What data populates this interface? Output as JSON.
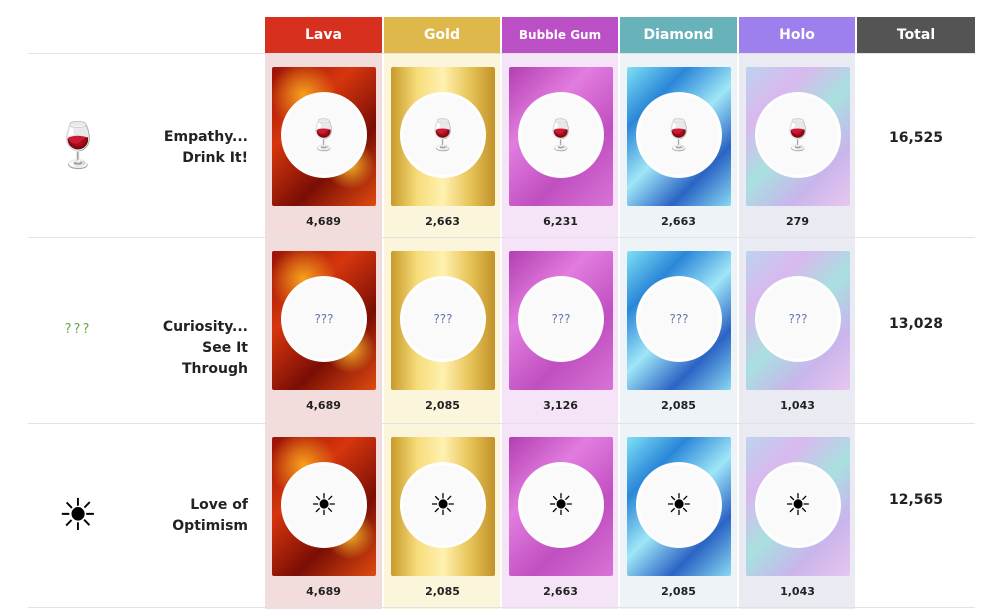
{
  "columns": [
    {
      "label": "Lava",
      "color": "#d7301f",
      "bg": "#f3dcdc",
      "style": "lava"
    },
    {
      "label": "Gold",
      "color": "#dfb84c",
      "bg": "#fbf5dc",
      "style": "gold"
    },
    {
      "label": "Bubble Gum",
      "color": "#bb4fc6",
      "bg": "#f5e4f7",
      "style": "bubble"
    },
    {
      "label": "Diamond",
      "color": "#68b3b9",
      "bg": "#edf3f6",
      "style": "diamond"
    },
    {
      "label": "Holo",
      "color": "#9d80ee",
      "bg": "#eaeaf3",
      "style": "holo"
    }
  ],
  "total_label": "Total",
  "total_color": "#545454",
  "rows": [
    {
      "name_line1": "Empathy...",
      "name_line2": "Drink It!",
      "icon": "wine-glass",
      "glyph": "🍷",
      "counts": [
        "4,689",
        "2,663",
        "6,231",
        "2,663",
        "279"
      ],
      "total": "16,525"
    },
    {
      "name_line1": "Curiosity...",
      "name_line2": "See It Through",
      "icon": "question-marks",
      "glyph": "???",
      "counts": [
        "4,689",
        "2,085",
        "3,126",
        "2,085",
        "1,043"
      ],
      "total": "13,028"
    },
    {
      "name_line1": "Love of",
      "name_line2": "Optimism",
      "icon": "optimism-zero",
      "glyph": "☀",
      "counts": [
        "4,689",
        "2,085",
        "2,663",
        "2,085",
        "1,043"
      ],
      "total": "12,565"
    }
  ]
}
